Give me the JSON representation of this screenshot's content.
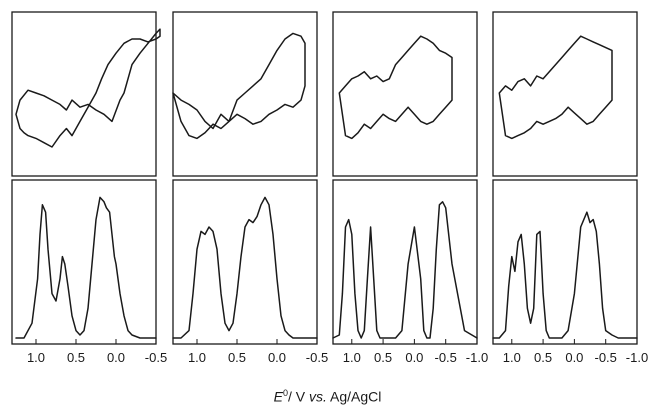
{
  "chart_data": [
    {
      "panel": 1,
      "row": "top",
      "type": "line",
      "curve": "cyclic voltammogram",
      "x": [
        1.25,
        1.2,
        1.15,
        1.1,
        1.0,
        0.9,
        0.8,
        0.7,
        0.62,
        0.55,
        0.45,
        0.35,
        0.25,
        0.18,
        0.1,
        0.0,
        -0.1,
        -0.2,
        -0.3,
        -0.4,
        -0.5,
        -0.55,
        -0.55,
        -0.5,
        -0.4,
        -0.3,
        -0.2,
        -0.15,
        -0.1,
        -0.05,
        0.05,
        0.15,
        0.25,
        0.35,
        0.45,
        0.55,
        0.62,
        0.7,
        0.8,
        0.9,
        1.0,
        1.1,
        1.2,
        1.25
      ],
      "y": [
        0.35,
        0.25,
        0.22,
        0.2,
        0.18,
        0.15,
        0.12,
        0.2,
        0.25,
        0.2,
        0.3,
        0.4,
        0.5,
        0.6,
        0.7,
        0.78,
        0.85,
        0.88,
        0.88,
        0.86,
        0.88,
        0.9,
        0.95,
        0.92,
        0.85,
        0.78,
        0.7,
        0.6,
        0.5,
        0.45,
        0.3,
        0.35,
        0.38,
        0.42,
        0.4,
        0.45,
        0.38,
        0.42,
        0.45,
        0.48,
        0.5,
        0.52,
        0.45,
        0.35
      ]
    },
    {
      "panel": 2,
      "row": "top",
      "type": "line",
      "curve": "cyclic voltammogram",
      "x": [
        1.3,
        1.2,
        1.1,
        1.0,
        0.9,
        0.8,
        0.7,
        0.6,
        0.5,
        0.4,
        0.3,
        0.2,
        0.1,
        0.0,
        -0.1,
        -0.2,
        -0.3,
        -0.35,
        -0.35,
        -0.3,
        -0.2,
        -0.1,
        0.0,
        0.1,
        0.2,
        0.3,
        0.4,
        0.5,
        0.6,
        0.7,
        0.8,
        0.9,
        1.0,
        1.1,
        1.2,
        1.3
      ],
      "y": [
        0.5,
        0.45,
        0.42,
        0.38,
        0.3,
        0.25,
        0.35,
        0.3,
        0.45,
        0.5,
        0.55,
        0.6,
        0.7,
        0.8,
        0.88,
        0.92,
        0.9,
        0.85,
        0.55,
        0.45,
        0.4,
        0.42,
        0.38,
        0.35,
        0.3,
        0.28,
        0.32,
        0.35,
        0.3,
        0.25,
        0.28,
        0.22,
        0.18,
        0.2,
        0.3,
        0.5
      ]
    },
    {
      "panel": 3,
      "row": "top",
      "type": "line",
      "curve": "cyclic voltammogram",
      "x": [
        1.2,
        1.1,
        1.0,
        0.9,
        0.8,
        0.7,
        0.6,
        0.5,
        0.4,
        0.3,
        0.2,
        0.1,
        0.0,
        -0.1,
        -0.2,
        -0.3,
        -0.4,
        -0.5,
        -0.6,
        -0.6,
        -0.5,
        -0.4,
        -0.3,
        -0.2,
        -0.1,
        0.0,
        0.1,
        0.2,
        0.3,
        0.4,
        0.5,
        0.6,
        0.7,
        0.8,
        0.9,
        1.0,
        1.1,
        1.2
      ],
      "y": [
        0.5,
        0.55,
        0.6,
        0.62,
        0.65,
        0.6,
        0.62,
        0.58,
        0.6,
        0.7,
        0.75,
        0.8,
        0.85,
        0.9,
        0.88,
        0.85,
        0.8,
        0.78,
        0.75,
        0.45,
        0.4,
        0.35,
        0.3,
        0.28,
        0.3,
        0.35,
        0.4,
        0.35,
        0.3,
        0.32,
        0.35,
        0.3,
        0.25,
        0.28,
        0.22,
        0.18,
        0.2,
        0.5
      ]
    },
    {
      "panel": 4,
      "row": "top",
      "type": "line",
      "curve": "cyclic voltammogram",
      "x": [
        1.2,
        1.1,
        1.0,
        0.9,
        0.8,
        0.7,
        0.6,
        0.5,
        0.4,
        0.3,
        0.2,
        0.1,
        0.0,
        -0.1,
        -0.2,
        -0.3,
        -0.4,
        -0.5,
        -0.6,
        -0.6,
        -0.5,
        -0.4,
        -0.3,
        -0.2,
        -0.1,
        0.0,
        0.1,
        0.2,
        0.3,
        0.4,
        0.5,
        0.6,
        0.7,
        0.8,
        0.9,
        1.0,
        1.1,
        1.2
      ],
      "y": [
        0.5,
        0.55,
        0.52,
        0.58,
        0.6,
        0.55,
        0.62,
        0.6,
        0.65,
        0.7,
        0.75,
        0.8,
        0.85,
        0.9,
        0.88,
        0.86,
        0.84,
        0.82,
        0.8,
        0.45,
        0.4,
        0.35,
        0.3,
        0.28,
        0.32,
        0.36,
        0.4,
        0.35,
        0.32,
        0.3,
        0.28,
        0.3,
        0.25,
        0.22,
        0.2,
        0.18,
        0.2,
        0.5
      ]
    },
    {
      "panel": 1,
      "row": "bottom",
      "type": "line",
      "curve": "deconvoluted voltammogram",
      "x": [
        1.25,
        1.15,
        1.05,
        0.98,
        0.95,
        0.92,
        0.88,
        0.85,
        0.8,
        0.75,
        0.7,
        0.67,
        0.64,
        0.6,
        0.55,
        0.5,
        0.45,
        0.4,
        0.35,
        0.3,
        0.25,
        0.2,
        0.15,
        0.12,
        0.08,
        0.05,
        0.02,
        0.0,
        -0.05,
        -0.1,
        -0.15,
        -0.2,
        -0.3,
        -0.4,
        -0.5
      ],
      "y": [
        0.0,
        0.0,
        0.1,
        0.4,
        0.7,
        0.9,
        0.85,
        0.6,
        0.3,
        0.25,
        0.4,
        0.55,
        0.5,
        0.35,
        0.15,
        0.05,
        0.02,
        0.05,
        0.2,
        0.5,
        0.8,
        0.95,
        0.92,
        0.88,
        0.85,
        0.7,
        0.55,
        0.5,
        0.3,
        0.15,
        0.05,
        0.02,
        0.0,
        0.0,
        0.0
      ]
    },
    {
      "panel": 2,
      "row": "bottom",
      "type": "line",
      "curve": "deconvoluted voltammogram",
      "x": [
        1.3,
        1.2,
        1.1,
        1.05,
        1.0,
        0.95,
        0.9,
        0.85,
        0.8,
        0.75,
        0.7,
        0.65,
        0.6,
        0.55,
        0.5,
        0.45,
        0.4,
        0.35,
        0.3,
        0.25,
        0.2,
        0.15,
        0.1,
        0.05,
        0.0,
        -0.05,
        -0.1,
        -0.15,
        -0.2,
        -0.3,
        -0.4,
        -0.5
      ],
      "y": [
        0.0,
        0.0,
        0.05,
        0.3,
        0.6,
        0.72,
        0.7,
        0.75,
        0.72,
        0.6,
        0.3,
        0.1,
        0.05,
        0.1,
        0.3,
        0.55,
        0.75,
        0.8,
        0.78,
        0.82,
        0.9,
        0.95,
        0.9,
        0.7,
        0.4,
        0.15,
        0.05,
        0.02,
        0.0,
        0.0,
        0.0,
        0.0
      ]
    },
    {
      "panel": 3,
      "row": "bottom",
      "type": "line",
      "curve": "deconvoluted voltammogram",
      "x": [
        1.3,
        1.2,
        1.15,
        1.1,
        1.05,
        1.0,
        0.95,
        0.9,
        0.85,
        0.8,
        0.75,
        0.7,
        0.65,
        0.6,
        0.55,
        0.5,
        0.4,
        0.3,
        0.2,
        0.1,
        0.0,
        -0.1,
        -0.15,
        -0.2,
        -0.25,
        -0.3,
        -0.35,
        -0.4,
        -0.45,
        -0.5,
        -0.6,
        -0.8,
        -1.0
      ],
      "y": [
        0.0,
        0.02,
        0.3,
        0.75,
        0.8,
        0.7,
        0.3,
        0.05,
        0.0,
        0.05,
        0.4,
        0.75,
        0.4,
        0.05,
        0.0,
        0.0,
        0.0,
        0.0,
        0.05,
        0.5,
        0.75,
        0.4,
        0.05,
        0.0,
        0.0,
        0.2,
        0.6,
        0.9,
        0.92,
        0.88,
        0.5,
        0.05,
        0.0
      ]
    },
    {
      "panel": 4,
      "row": "bottom",
      "type": "line",
      "curve": "deconvoluted voltammogram",
      "x": [
        1.3,
        1.2,
        1.1,
        1.05,
        1.0,
        0.95,
        0.9,
        0.85,
        0.8,
        0.75,
        0.7,
        0.65,
        0.6,
        0.55,
        0.5,
        0.45,
        0.4,
        0.3,
        0.2,
        0.1,
        0.0,
        -0.1,
        -0.2,
        -0.25,
        -0.3,
        -0.35,
        -0.4,
        -0.45,
        -0.5,
        -0.6,
        -0.7,
        -0.8,
        -1.0
      ],
      "y": [
        0.0,
        0.0,
        0.05,
        0.35,
        0.55,
        0.45,
        0.65,
        0.7,
        0.5,
        0.2,
        0.1,
        0.2,
        0.7,
        0.72,
        0.3,
        0.05,
        0.0,
        0.0,
        0.0,
        0.05,
        0.3,
        0.75,
        0.85,
        0.78,
        0.8,
        0.72,
        0.5,
        0.2,
        0.05,
        0.02,
        0.0,
        0.0,
        0.0
      ]
    },
    {
      "row": "axis",
      "type": "line",
      "xlim_panels": [
        [
          1.3,
          -0.5
        ],
        [
          1.3,
          -0.5
        ],
        [
          1.3,
          -1.0
        ],
        [
          1.3,
          -1.0
        ]
      ],
      "tick_labels": [
        [
          "1.0",
          "0.5",
          "0.0",
          "-0.5"
        ],
        [
          "1.0",
          "0.5",
          "0.0",
          "-0.5"
        ],
        [
          "1.0",
          "0.5",
          "0.0",
          "-0.5",
          "-1.0"
        ],
        [
          "1.0",
          "0.5",
          "0.0",
          "-0.5",
          "-1.0"
        ]
      ],
      "xlabel_parts": {
        "e": "E",
        "sup": "0",
        "sep": "/ V ",
        "vs": "vs.",
        "ref": " Ag/AgCl"
      }
    }
  ],
  "style": {
    "line_color": "#1a1a1a",
    "background": "#ffffff",
    "grid": false
  }
}
